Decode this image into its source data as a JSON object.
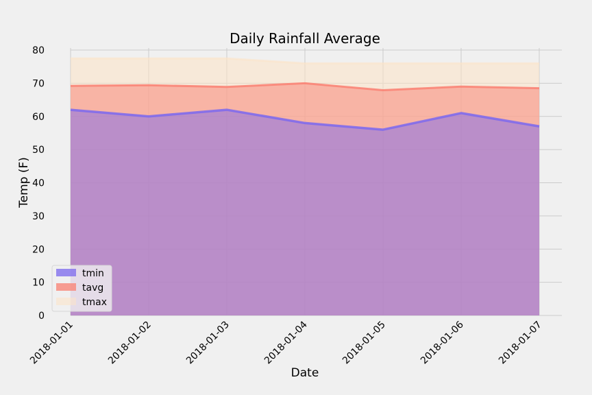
{
  "chart_data": {
    "type": "area",
    "title": "Daily Rainfall Average",
    "xlabel": "Date",
    "ylabel": "Temp (F)",
    "categories": [
      "2018-01-01",
      "2018-01-02",
      "2018-01-03",
      "2018-01-04",
      "2018-01-05",
      "2018-01-06",
      "2018-01-07"
    ],
    "ylim": [
      0,
      80
    ],
    "yticks": [
      0,
      10,
      20,
      30,
      40,
      50,
      60,
      70,
      80
    ],
    "stacked": false,
    "grid": true,
    "legend_position": "lower-left",
    "series": [
      {
        "name": "tmin",
        "values": [
          62,
          60,
          62,
          58,
          56,
          61,
          57
        ],
        "color": "#7b68ee"
      },
      {
        "name": "tavg",
        "values": [
          69.2,
          69.4,
          68.9,
          70.0,
          67.9,
          69.0,
          68.5
        ],
        "color": "#fa8072"
      },
      {
        "name": "tmax",
        "values": [
          77.5,
          77.5,
          77.5,
          76.0,
          76.0,
          76.0,
          76.0
        ],
        "color": "#fde3c6"
      }
    ],
    "colors": {
      "background": "#f0f0f0",
      "grid": "#cbcbcb"
    }
  }
}
